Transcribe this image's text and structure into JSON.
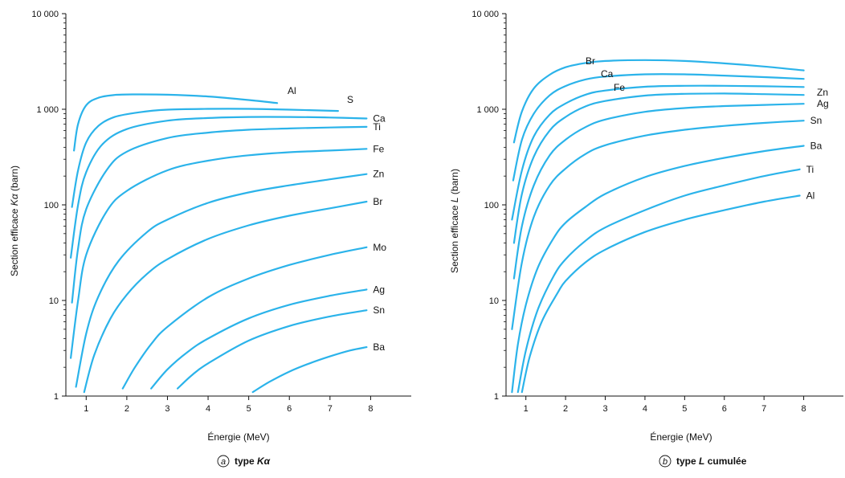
{
  "chart_data": [
    {
      "type": "line",
      "caption_letter": "a",
      "caption_prefix": "type ",
      "caption_italic": "Kα",
      "caption_suffix": "",
      "xlabel": "Énergie (MeV)",
      "ylabel_parts": [
        "Section efficace ",
        "Kα",
        " (barn)"
      ],
      "xlim": [
        0.5,
        9.0
      ],
      "ylim": [
        1,
        10000
      ],
      "yscale": "log",
      "x_ticks": [
        1,
        2,
        3,
        4,
        5,
        6,
        7,
        8
      ],
      "x_tick_labels": [
        "1",
        "2",
        "3",
        "4",
        "5",
        "6",
        "7",
        "8"
      ],
      "y_ticks": [
        1,
        10,
        100,
        1000,
        10000
      ],
      "y_tick_labels": [
        "1",
        "10",
        "100",
        "1 000",
        "10 000"
      ],
      "color": "#2BB3EA",
      "series": [
        {
          "name": "Al",
          "x": [
            0.7,
            0.8,
            1.0,
            1.3,
            1.7,
            2.2,
            3.0,
            4.0,
            5.0,
            5.7
          ],
          "y": [
            370,
            700,
            1100,
            1320,
            1410,
            1430,
            1420,
            1360,
            1250,
            1160
          ]
        },
        {
          "name": "S",
          "x": [
            0.65,
            0.8,
            1.0,
            1.3,
            1.7,
            2.3,
            3.0,
            4.0,
            5.0,
            6.0,
            7.2
          ],
          "y": [
            95,
            230,
            450,
            670,
            830,
            930,
            990,
            1010,
            1010,
            990,
            960
          ]
        },
        {
          "name": "Ca",
          "x": [
            0.62,
            0.8,
            1.0,
            1.4,
            2.0,
            3.0,
            4.0,
            5.0,
            6.0,
            7.0,
            7.9
          ],
          "y": [
            28,
            100,
            220,
            430,
            620,
            760,
            810,
            830,
            830,
            820,
            800
          ]
        },
        {
          "name": "Ti",
          "x": [
            0.65,
            0.8,
            1.0,
            1.5,
            2.0,
            3.0,
            4.0,
            5.0,
            6.0,
            7.0,
            7.9
          ],
          "y": [
            9.5,
            35,
            90,
            230,
            360,
            500,
            570,
            610,
            630,
            645,
            655
          ]
        },
        {
          "name": "Fe",
          "x": [
            0.62,
            0.8,
            1.0,
            1.5,
            2.0,
            3.0,
            4.0,
            5.0,
            6.0,
            7.0,
            7.9
          ],
          "y": [
            2.5,
            10,
            30,
            85,
            140,
            230,
            290,
            330,
            355,
            370,
            385
          ]
        },
        {
          "name": "Zn",
          "x": [
            0.75,
            1.0,
            1.3,
            1.8,
            2.5,
            3.0,
            4.0,
            5.0,
            6.0,
            7.0,
            7.9
          ],
          "y": [
            1.25,
            4.5,
            11,
            26,
            52,
            70,
            105,
            135,
            160,
            185,
            210
          ]
        },
        {
          "name": "Br",
          "x": [
            0.95,
            1.2,
            1.6,
            2.0,
            2.5,
            3.0,
            4.0,
            5.0,
            6.0,
            7.0,
            7.9
          ],
          "y": [
            1.1,
            2.7,
            6.5,
            11.5,
            19,
            27,
            44,
            61,
            77,
            92,
            108
          ]
        },
        {
          "name": "Mo",
          "x": [
            1.9,
            2.2,
            2.6,
            3.0,
            4.0,
            5.0,
            6.0,
            7.0,
            7.9
          ],
          "y": [
            1.2,
            2.0,
            3.5,
            5.3,
            10.8,
            17,
            23.5,
            30,
            36
          ]
        },
        {
          "name": "Ag",
          "x": [
            2.6,
            3.0,
            3.5,
            4.0,
            5.0,
            6.0,
            7.0,
            7.9
          ],
          "y": [
            1.2,
            1.9,
            2.9,
            4.0,
            6.5,
            9.0,
            11.2,
            13
          ]
        },
        {
          "name": "Sn",
          "x": [
            3.25,
            3.6,
            4.0,
            5.0,
            6.0,
            7.0,
            7.9
          ],
          "y": [
            1.2,
            1.65,
            2.2,
            3.8,
            5.4,
            6.8,
            7.9
          ]
        },
        {
          "name": "Ba",
          "x": [
            5.1,
            5.5,
            6.0,
            6.5,
            7.0,
            7.5,
            7.9
          ],
          "y": [
            1.1,
            1.4,
            1.8,
            2.2,
            2.6,
            3.0,
            3.25
          ]
        }
      ]
    },
    {
      "type": "line",
      "caption_letter": "b",
      "caption_prefix": "type ",
      "caption_italic": "L",
      "caption_suffix": " cumulée",
      "xlabel": "Énergie (MeV)",
      "ylabel_parts": [
        "Section efficace ",
        "L",
        " (barn)"
      ],
      "xlim": [
        0.5,
        9.0
      ],
      "ylim": [
        1,
        10000
      ],
      "yscale": "log",
      "x_ticks": [
        1,
        2,
        3,
        4,
        5,
        6,
        7,
        8
      ],
      "x_tick_labels": [
        "1",
        "2",
        "3",
        "4",
        "5",
        "6",
        "7",
        "8"
      ],
      "y_ticks": [
        1,
        10,
        100,
        1000,
        10000
      ],
      "y_tick_labels": [
        "1",
        "10",
        "100",
        "1 000",
        "10 000"
      ],
      "color": "#2BB3EA",
      "series": [
        {
          "name": "Br",
          "x": [
            0.7,
            0.9,
            1.2,
            1.6,
            2.0,
            2.5,
            3.0,
            4.0,
            5.0,
            6.0,
            7.0,
            8.0
          ],
          "y": [
            450,
            950,
            1650,
            2300,
            2750,
            3050,
            3200,
            3270,
            3200,
            3020,
            2800,
            2550
          ]
        },
        {
          "name": "Ca",
          "x": [
            0.68,
            0.9,
            1.2,
            1.6,
            2.0,
            2.5,
            3.0,
            4.0,
            5.0,
            6.0,
            7.0,
            8.0
          ],
          "y": [
            180,
            480,
            900,
            1400,
            1750,
            2050,
            2200,
            2320,
            2320,
            2250,
            2170,
            2080
          ]
        },
        {
          "name": "Fe",
          "x": [
            0.65,
            0.9,
            1.2,
            1.6,
            2.0,
            2.5,
            3.0,
            4.0,
            5.0,
            6.0,
            7.0,
            8.0
          ],
          "y": [
            70,
            230,
            520,
            880,
            1150,
            1420,
            1570,
            1720,
            1760,
            1760,
            1740,
            1710
          ]
        },
        {
          "name": "Zn",
          "x": [
            0.7,
            0.9,
            1.2,
            1.6,
            2.0,
            2.5,
            3.0,
            4.0,
            5.0,
            6.0,
            7.0,
            8.0
          ],
          "y": [
            40,
            130,
            320,
            600,
            830,
            1070,
            1220,
            1390,
            1450,
            1460,
            1440,
            1410
          ]
        },
        {
          "name": "Ag",
          "x": [
            0.7,
            0.9,
            1.2,
            1.6,
            2.0,
            2.5,
            3.0,
            4.0,
            5.0,
            6.0,
            7.0,
            8.0
          ],
          "y": [
            17,
            60,
            160,
            330,
            480,
            650,
            780,
            940,
            1030,
            1080,
            1110,
            1140
          ]
        },
        {
          "name": "Sn",
          "x": [
            0.65,
            0.9,
            1.2,
            1.6,
            2.0,
            2.5,
            3.0,
            4.0,
            5.0,
            6.0,
            7.0,
            8.0
          ],
          "y": [
            5,
            25,
            75,
            160,
            240,
            340,
            420,
            530,
            610,
            670,
            720,
            760
          ]
        },
        {
          "name": "Ba",
          "x": [
            0.65,
            0.8,
            1.0,
            1.3,
            1.7,
            2.0,
            2.5,
            3.0,
            4.0,
            5.0,
            6.0,
            7.0,
            8.0
          ],
          "y": [
            1.1,
            3.5,
            9,
            22,
            45,
            65,
            95,
            130,
            195,
            255,
            310,
            365,
            415
          ]
        },
        {
          "name": "Ti",
          "x": [
            0.8,
            1.0,
            1.3,
            1.7,
            2.0,
            2.5,
            3.0,
            4.0,
            5.0,
            6.0,
            7.0,
            7.9
          ],
          "y": [
            1.1,
            3.0,
            8,
            18,
            27,
            42,
            58,
            88,
            125,
            160,
            200,
            235
          ]
        },
        {
          "name": "Al",
          "x": [
            0.9,
            1.1,
            1.4,
            1.8,
            2.0,
            2.5,
            3.0,
            4.0,
            5.0,
            6.0,
            7.0,
            7.9
          ],
          "y": [
            1.1,
            2.6,
            6,
            12,
            16,
            25,
            34,
            52,
            70,
            88,
            108,
            125
          ]
        }
      ]
    }
  ]
}
